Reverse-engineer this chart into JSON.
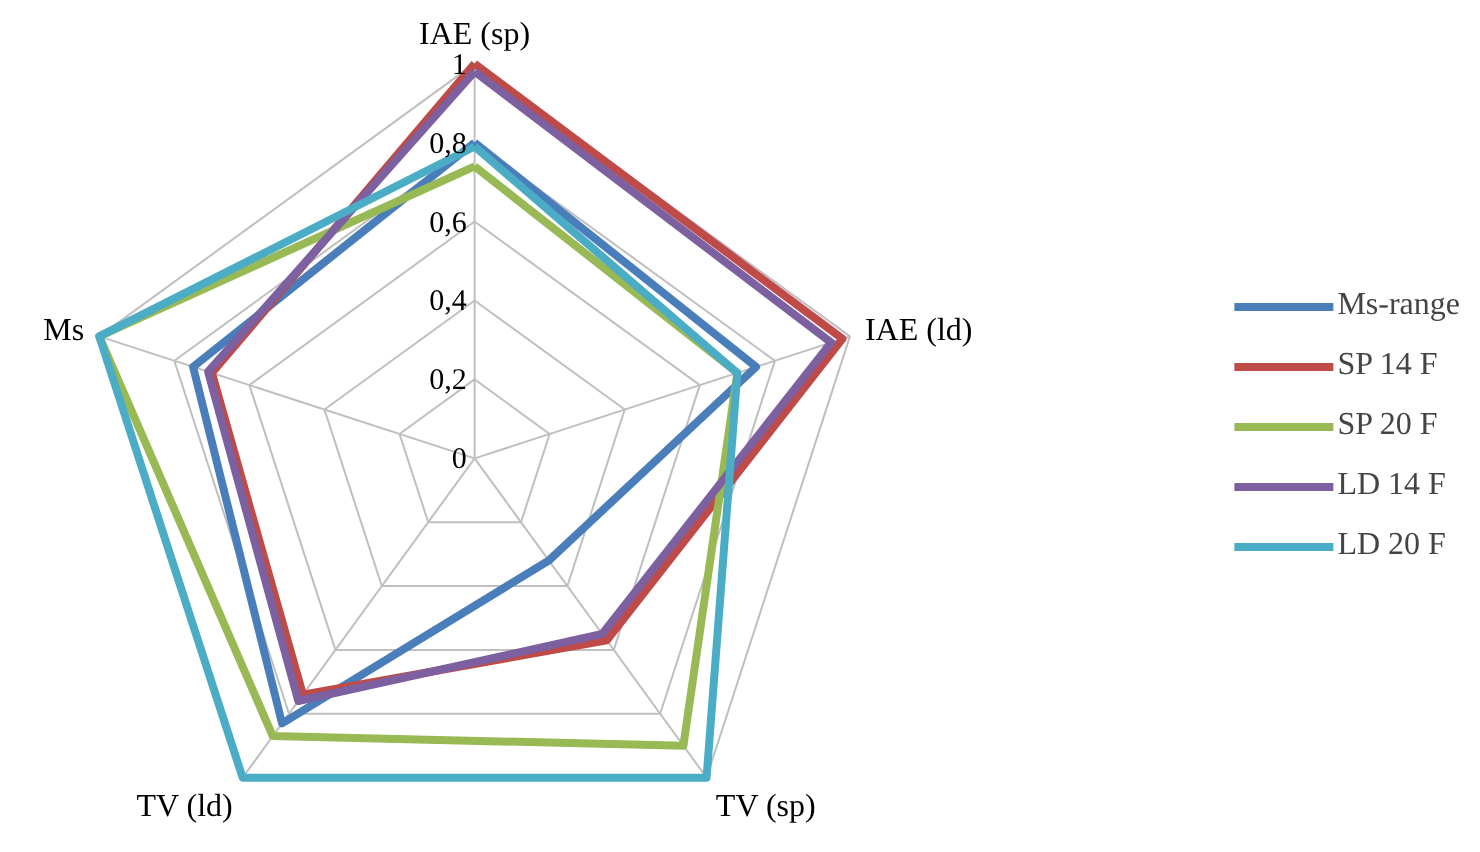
{
  "chart_data": {
    "type": "radar",
    "categories": [
      "IAE (sp)",
      "IAE (ld)",
      "TV (sp)",
      "TV (ld)",
      "Ms"
    ],
    "ylim": [
      0,
      1
    ],
    "yticks": [
      {
        "value": 0,
        "label": "0"
      },
      {
        "value": 0.2,
        "label": "0,2"
      },
      {
        "value": 0.4,
        "label": "0,4"
      },
      {
        "value": 0.6,
        "label": "0,6"
      },
      {
        "value": 0.8,
        "label": "0,8"
      },
      {
        "value": 1,
        "label": "1"
      }
    ],
    "grid": true,
    "legend": "right",
    "marker": "none",
    "line_style": "solid",
    "series": [
      {
        "name": "Ms-range",
        "color": "#4a7ebb",
        "values": [
          0.8,
          0.75,
          0.32,
          0.83,
          0.75
        ]
      },
      {
        "name": "SP 14 F",
        "color": "#be4b48",
        "values": [
          1,
          0.98,
          0.57,
          0.74,
          0.7
        ]
      },
      {
        "name": "SP 20 F",
        "color": "#98b954",
        "values": [
          0.74,
          0.7,
          0.9,
          0.87,
          1
        ]
      },
      {
        "name": "LD 14 F",
        "color": "#7d60a0",
        "values": [
          0.98,
          0.95,
          0.55,
          0.76,
          0.71
        ]
      },
      {
        "name": "LD 20 F",
        "color": "#4bacc6",
        "values": [
          0.79,
          0.7,
          1,
          1,
          1
        ]
      }
    ]
  }
}
